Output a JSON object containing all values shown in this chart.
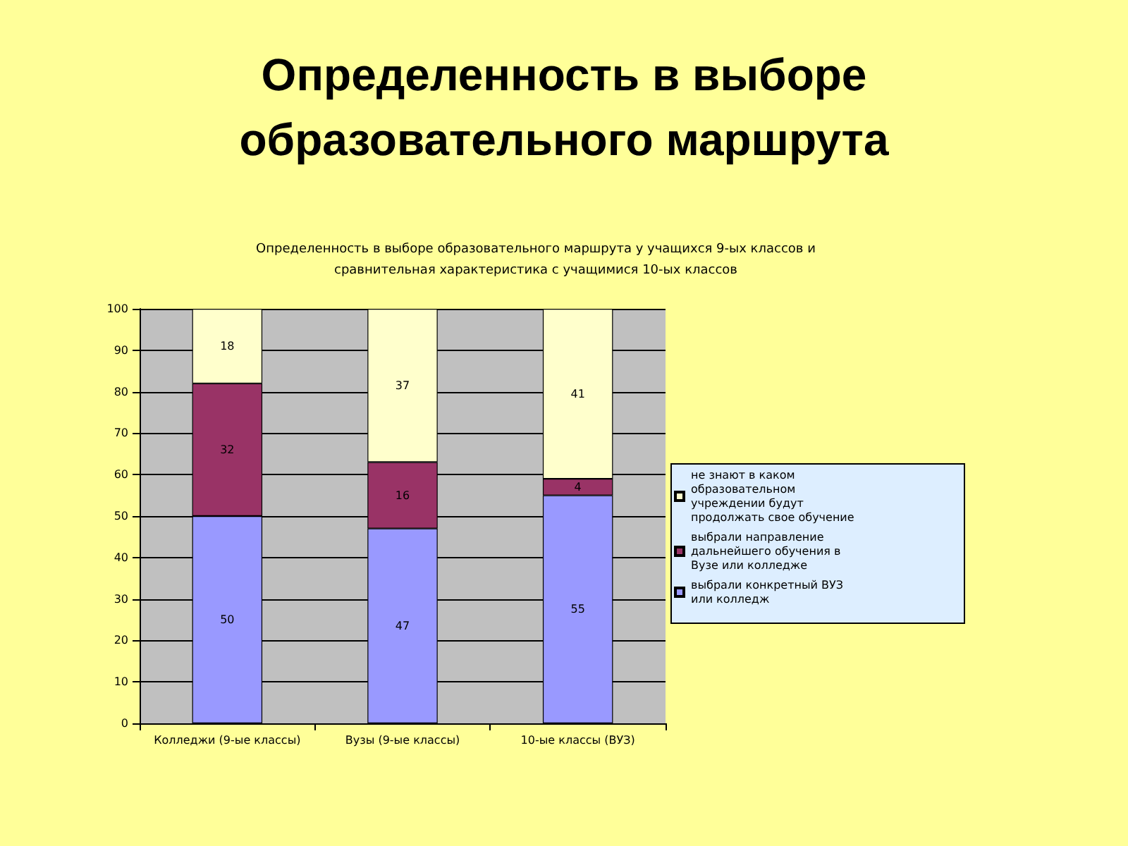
{
  "chart_data": {
    "type": "bar",
    "title": "Определенность в выборе образовательного маршрута",
    "subtitle": "Определенность в выборе образовательного маршрута у учащихся 9-ых классов и сравнительная характеристика с учащимися 10-ых классов",
    "categories": [
      "Колледжи (9-ые классы)",
      "Вузы (9-ые классы)",
      "10-ые классы (ВУЗ)"
    ],
    "stacked": true,
    "series": [
      {
        "name": "выбрали конкретный ВУЗ или колледж",
        "color": "#9999ff",
        "values": [
          50,
          47,
          55
        ]
      },
      {
        "name": "выбрали направление дальнейшего обучения в Вузе или колледже",
        "color": "#993366",
        "values": [
          32,
          16,
          4
        ]
      },
      {
        "name": "не знают в каком образовательном учреждении будут продолжать свое обучение",
        "color": "#ffffcc",
        "values": [
          18,
          37,
          41
        ]
      }
    ],
    "ylim": [
      0,
      100
    ],
    "yticks": [
      0,
      10,
      20,
      30,
      40,
      50,
      60,
      70,
      80,
      90,
      100
    ],
    "grid": "y",
    "legend": "right",
    "data_labels": true
  }
}
